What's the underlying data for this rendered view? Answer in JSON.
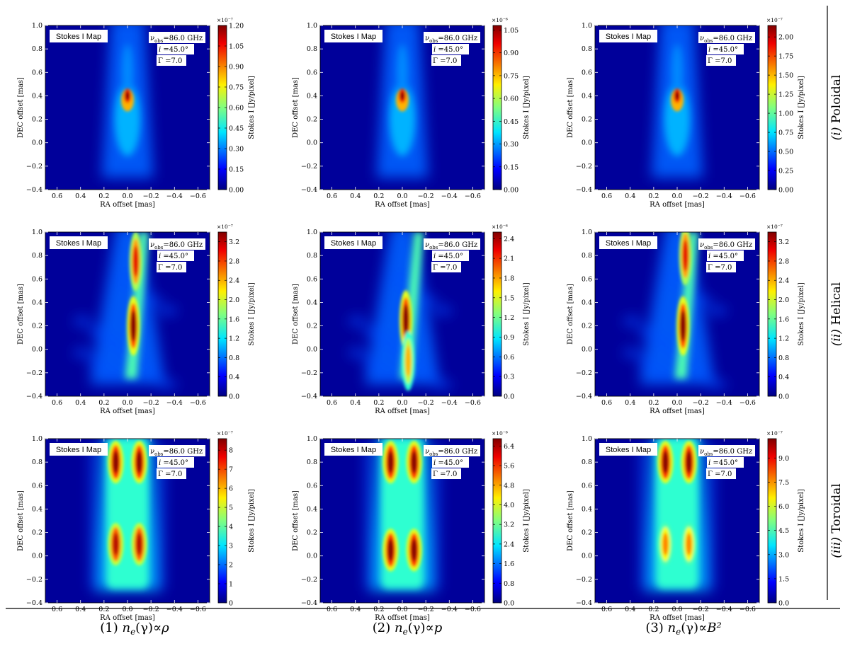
{
  "figure": {
    "row_labels": [
      {
        "prefix": "(i)",
        "name": "Poloidal"
      },
      {
        "prefix": "(ii)",
        "name": "Helical"
      },
      {
        "prefix": "(iii)",
        "name": "Toroidal"
      }
    ],
    "column_labels": [
      {
        "number": "(1)",
        "relation": "ρ"
      },
      {
        "number": "(2)",
        "relation": "p"
      },
      {
        "number": "(3)",
        "relation": "B²"
      }
    ],
    "column_label_prefix": "n",
    "column_label_subscript": "e",
    "column_label_arg": "(γ)∝"
  },
  "panel_common": {
    "box_label": "Stokes I Map",
    "nu_label": "ν",
    "nu_sub": "obs",
    "nu_value": "=86.0 GHz",
    "incl_label": "i",
    "incl_value": "=45.0°",
    "gamma_label": "Γ",
    "gamma_value": "=7.0",
    "xlabel": "RA offset [mas]",
    "ylabel": "DEC offset [mas]",
    "cbar_label": "Stokes I [Jy/pixel]",
    "colormap": "jet",
    "background_color": "#00009a",
    "x_ticks": [
      "0.6",
      "0.4",
      "0.2",
      "0.0",
      "−0.2",
      "−0.4",
      "−0.6"
    ],
    "y_ticks": [
      "1.0",
      "0.8",
      "0.6",
      "0.4",
      "0.2",
      "0.0",
      "−0.2",
      "−0.4"
    ]
  },
  "chart_data": [
    {
      "type": "heatmap",
      "row": "Poloidal",
      "column": "(1)",
      "title": "Stokes I Map",
      "xlim": [
        0.7,
        -0.7
      ],
      "ylim": [
        -0.4,
        1.0
      ],
      "cbar_scale": "×10⁻⁷",
      "cbar_ticks": [
        "0.00",
        "0.15",
        "0.30",
        "0.45",
        "0.60",
        "0.75",
        "0.90",
        "1.05",
        "1.20"
      ],
      "cbar_max": 1.2,
      "features": [
        {
          "x": 0.0,
          "y": 0.4,
          "peak": 1.0,
          "note": "bright core"
        }
      ]
    },
    {
      "type": "heatmap",
      "row": "Poloidal",
      "column": "(2)",
      "title": "Stokes I Map",
      "xlim": [
        0.7,
        -0.7
      ],
      "ylim": [
        -0.4,
        1.0
      ],
      "cbar_scale": "×10⁻⁶",
      "cbar_ticks": [
        "0.00",
        "0.15",
        "0.30",
        "0.45",
        "0.60",
        "0.75",
        "0.90",
        "1.05"
      ],
      "cbar_max": 1.08,
      "features": [
        {
          "x": 0.0,
          "y": 0.4,
          "peak": 1.0,
          "note": "bright core"
        }
      ]
    },
    {
      "type": "heatmap",
      "row": "Poloidal",
      "column": "(3)",
      "title": "Stokes I Map",
      "xlim": [
        0.7,
        -0.7
      ],
      "ylim": [
        -0.4,
        1.0
      ],
      "cbar_scale": "×10⁻⁷",
      "cbar_ticks": [
        "0.00",
        "0.25",
        "0.50",
        "0.75",
        "1.00",
        "1.25",
        "1.50",
        "1.75",
        "2.00"
      ],
      "cbar_max": 2.15,
      "features": [
        {
          "x": 0.0,
          "y": 0.4,
          "peak": 1.0,
          "note": "bright core"
        }
      ]
    },
    {
      "type": "heatmap",
      "row": "Helical",
      "column": "(1)",
      "title": "Stokes I Map",
      "xlim": [
        0.7,
        -0.7
      ],
      "ylim": [
        -0.4,
        1.0
      ],
      "cbar_scale": "×10⁻⁷",
      "cbar_ticks": [
        "0.0",
        "0.4",
        "0.8",
        "1.2",
        "1.6",
        "2.0",
        "2.4",
        "2.8",
        "3.2"
      ],
      "cbar_max": 3.4,
      "features": [
        {
          "x": -0.05,
          "y": 0.2,
          "peak": 1.0
        },
        {
          "x": -0.07,
          "y": 0.75,
          "peak": 0.9
        }
      ]
    },
    {
      "type": "heatmap",
      "row": "Helical",
      "column": "(2)",
      "title": "Stokes I Map",
      "xlim": [
        0.7,
        -0.7
      ],
      "ylim": [
        -0.4,
        1.0
      ],
      "cbar_scale": "×10⁻⁶",
      "cbar_ticks": [
        "0.0",
        "0.3",
        "0.6",
        "0.9",
        "1.2",
        "1.5",
        "1.8",
        "2.1",
        "2.4"
      ],
      "cbar_max": 2.5,
      "features": [
        {
          "x": -0.03,
          "y": 0.25,
          "peak": 1.0
        },
        {
          "x": -0.05,
          "y": -0.1,
          "peak": 0.7
        }
      ]
    },
    {
      "type": "heatmap",
      "row": "Helical",
      "column": "(3)",
      "title": "Stokes I Map",
      "xlim": [
        0.7,
        -0.7
      ],
      "ylim": [
        -0.4,
        1.0
      ],
      "cbar_scale": "×10⁻⁷",
      "cbar_ticks": [
        "0.0",
        "0.4",
        "0.8",
        "1.2",
        "1.6",
        "2.0",
        "2.4",
        "2.8",
        "3.2"
      ],
      "cbar_max": 3.4,
      "features": [
        {
          "x": -0.05,
          "y": 0.2,
          "peak": 1.0
        },
        {
          "x": -0.07,
          "y": 0.8,
          "peak": 0.9
        }
      ]
    },
    {
      "type": "heatmap",
      "row": "Toroidal",
      "column": "(1)",
      "title": "Stokes I Map",
      "xlim": [
        0.7,
        -0.7
      ],
      "ylim": [
        -0.4,
        1.0
      ],
      "cbar_scale": "×10⁻⁷",
      "cbar_ticks": [
        "0",
        "1",
        "2",
        "3",
        "4",
        "5",
        "6",
        "7",
        "8"
      ],
      "cbar_max": 8.6,
      "features": [
        {
          "x": 0.1,
          "y": 0.8,
          "peak": 1.0
        },
        {
          "x": -0.1,
          "y": 0.8,
          "peak": 1.0
        },
        {
          "x": 0.1,
          "y": 0.1,
          "peak": 0.95
        },
        {
          "x": -0.1,
          "y": 0.1,
          "peak": 0.95
        }
      ]
    },
    {
      "type": "heatmap",
      "row": "Toroidal",
      "column": "(2)",
      "title": "Stokes I Map",
      "xlim": [
        0.7,
        -0.7
      ],
      "ylim": [
        -0.4,
        1.0
      ],
      "cbar_scale": "×10⁻⁶",
      "cbar_ticks": [
        "0.0",
        "0.8",
        "1.6",
        "2.4",
        "3.2",
        "4.0",
        "4.8",
        "5.6",
        "6.4"
      ],
      "cbar_max": 6.7,
      "features": [
        {
          "x": 0.1,
          "y": 0.8,
          "peak": 1.0
        },
        {
          "x": -0.1,
          "y": 0.8,
          "peak": 1.0
        },
        {
          "x": 0.1,
          "y": 0.05,
          "peak": 1.0
        },
        {
          "x": -0.1,
          "y": 0.05,
          "peak": 1.0
        }
      ]
    },
    {
      "type": "heatmap",
      "row": "Toroidal",
      "column": "(3)",
      "title": "Stokes I Map",
      "xlim": [
        0.7,
        -0.7
      ],
      "ylim": [
        -0.4,
        1.0
      ],
      "cbar_scale": "×10⁻⁷",
      "cbar_ticks": [
        "0.0",
        "1.5",
        "3.0",
        "4.5",
        "6.0",
        "7.5",
        "9.0"
      ],
      "cbar_max": 10.2,
      "features": [
        {
          "x": 0.1,
          "y": 0.8,
          "peak": 1.0
        },
        {
          "x": -0.1,
          "y": 0.8,
          "peak": 1.0
        },
        {
          "x": 0.1,
          "y": 0.1,
          "peak": 0.75
        },
        {
          "x": -0.1,
          "y": 0.1,
          "peak": 0.75
        }
      ]
    }
  ]
}
